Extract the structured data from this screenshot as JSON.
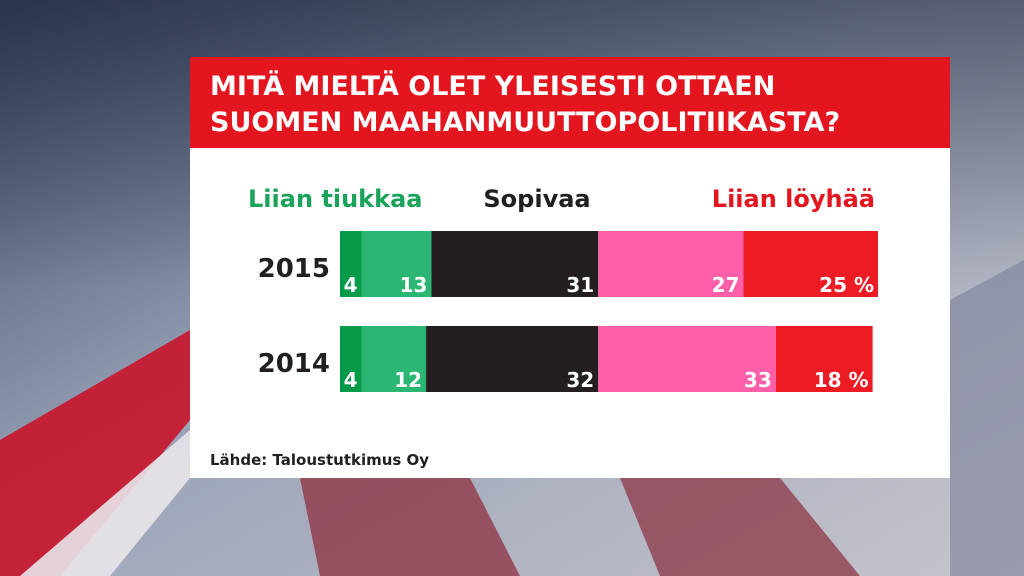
{
  "chart_data": {
    "type": "stacked_bar_horizontal",
    "title_lines": [
      "MITÄ MIELTÄ OLET YLEISESTI OTTAEN",
      "SUOMEN MAAHANMUUTTOPOLITIIKASTA?"
    ],
    "groups": [
      {
        "label": "Liian tiukkaa",
        "color": "#1aa35b"
      },
      {
        "label": "Sopivaa",
        "color": "#231f20"
      },
      {
        "label": "Liian löyhää",
        "color": "#e3151f"
      }
    ],
    "categories": [
      "2015",
      "2014"
    ],
    "series": [
      {
        "color": "#079a48",
        "values": [
          4,
          4
        ]
      },
      {
        "color": "#2bb673",
        "values": [
          13,
          12
        ]
      },
      {
        "color": "#231f20",
        "values": [
          31,
          32
        ]
      },
      {
        "color": "#ff5ea8",
        "values": [
          27,
          33
        ]
      },
      {
        "color": "#ed1c24",
        "values": [
          25,
          18
        ],
        "value_labels": [
          "25 %",
          "18 %"
        ]
      }
    ],
    "xlim": [
      0,
      100
    ],
    "source": "Lähde: Taloustutkimus Oy"
  }
}
